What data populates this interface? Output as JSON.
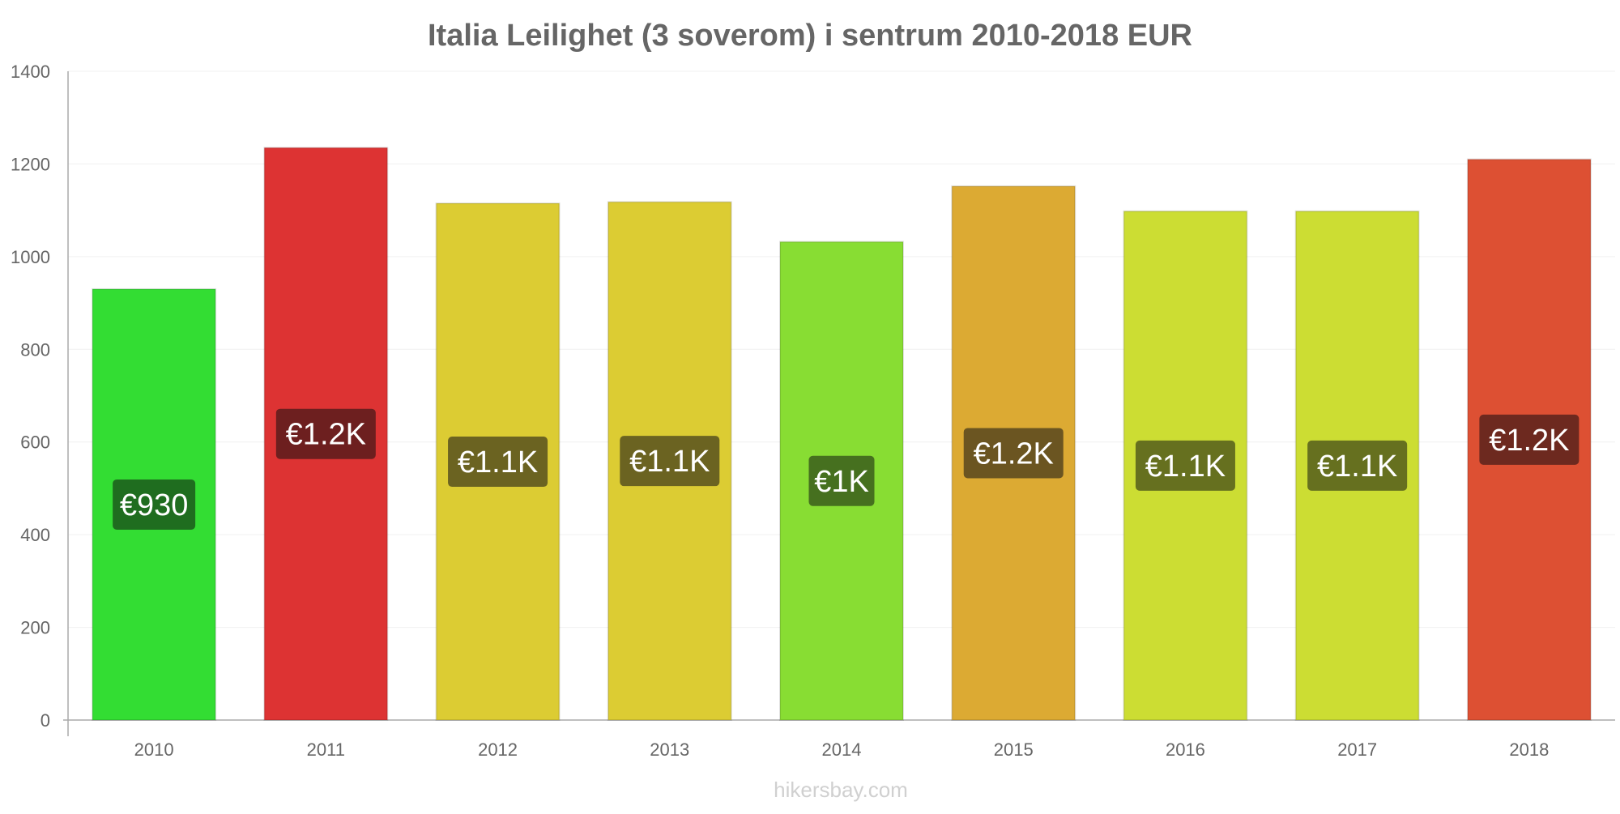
{
  "chart_data": {
    "type": "bar",
    "title": "Italia Leilighet (3 soverom) i sentrum 2010-2018 EUR",
    "xlabel": "",
    "ylabel": "",
    "ylim": [
      0,
      1400
    ],
    "yticks": [
      "0",
      "200",
      "400",
      "600",
      "800",
      "1000",
      "1200",
      "1400"
    ],
    "ytick_values": [
      0,
      200,
      400,
      600,
      800,
      1000,
      1200,
      1400
    ],
    "grid": true,
    "categories": [
      "2010",
      "2011",
      "2012",
      "2013",
      "2014",
      "2015",
      "2016",
      "2017",
      "2018"
    ],
    "values": [
      930,
      1235,
      1115,
      1118,
      1032,
      1152,
      1098,
      1098,
      1210
    ],
    "data_labels": [
      "€930",
      "€1.2K",
      "€1.1K",
      "€1.1K",
      "€1K",
      "€1.2K",
      "€1.1K",
      "€1.1K",
      "€1.2K"
    ],
    "bar_colors": [
      "#33dd33",
      "#dd3333",
      "#dccc33",
      "#dccc33",
      "#88dd33",
      "#dcaa33",
      "#ccdd33",
      "#ccdd33",
      "#dd5033"
    ],
    "label_colors": [
      "#1f6d1f",
      "#6d1f1f",
      "#6b6321",
      "#6b6321",
      "#46701f",
      "#6b5521",
      "#66701f",
      "#66701f",
      "#6d291f"
    ]
  },
  "footer": {
    "credit": "hikersbay.com"
  }
}
